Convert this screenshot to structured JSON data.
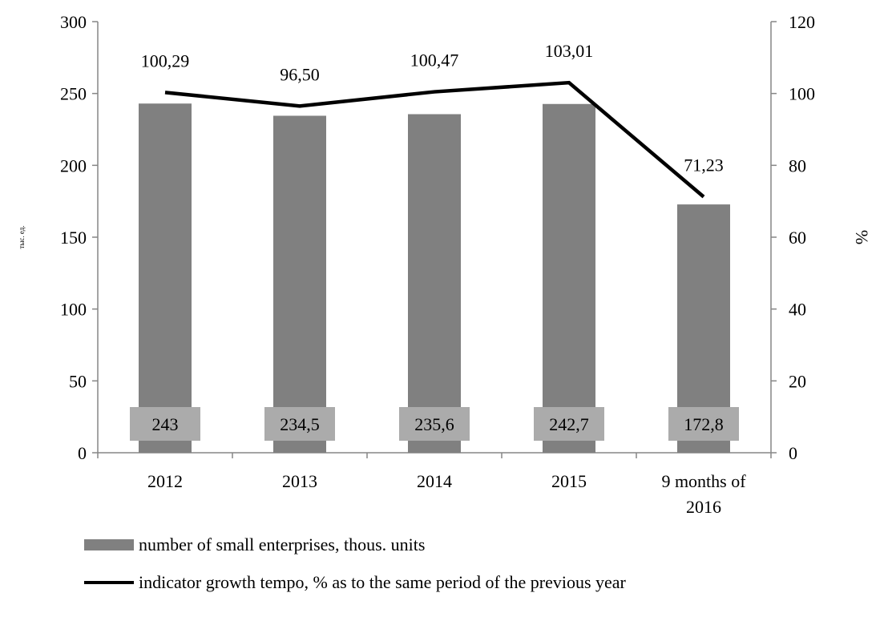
{
  "chart_data": {
    "type": "bar",
    "categories": [
      "2012",
      "2013",
      "2014",
      "2015",
      "9 months of 2016"
    ],
    "series": [
      {
        "name": "number of small enterprises, thous. units",
        "type": "bar",
        "axis": "left",
        "values": [
          243,
          234.5,
          235.6,
          242.7,
          172.8
        ],
        "labels": [
          "243",
          "234,5",
          "235,6",
          "242,7",
          "172,8"
        ],
        "color": "#808080"
      },
      {
        "name": "indicator growth tempo,  % as to the same period of the previous year",
        "type": "line",
        "axis": "right",
        "values": [
          100.29,
          96.5,
          100.47,
          103.01,
          71.23
        ],
        "labels": [
          "100,29",
          "96,50",
          "100,47",
          "103,01",
          "71,23"
        ],
        "color": "#000000"
      }
    ],
    "y_left": {
      "label": "тыс. ед.",
      "ylim": [
        0,
        300
      ],
      "ticks": [
        0,
        50,
        100,
        150,
        200,
        250,
        300
      ]
    },
    "y_right": {
      "label": "%",
      "ylim": [
        0,
        120
      ],
      "ticks": [
        0,
        20,
        40,
        60,
        80,
        100,
        120
      ]
    },
    "category_labels": [
      [
        "2012"
      ],
      [
        "2013"
      ],
      [
        "2014"
      ],
      [
        "2015"
      ],
      [
        "9 months of",
        "2016"
      ]
    ],
    "grid": false,
    "legend_position": "bottom"
  },
  "legend": [
    {
      "label": "number of small enterprises, thous. units",
      "kind": "bar"
    },
    {
      "label": "indicator growth tempo,  % as to the same period of the previous year",
      "kind": "line"
    }
  ]
}
